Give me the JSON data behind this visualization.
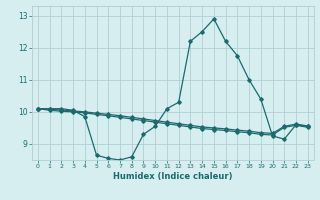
{
  "xlabel": "Humidex (Indice chaleur)",
  "bg_color": "#d6eef0",
  "grid_color": "#b0cfd4",
  "line_color": "#1a6b6e",
  "xlim": [
    -0.5,
    23.5
  ],
  "ylim": [
    8.5,
    13.3
  ],
  "yticks": [
    9,
    10,
    11,
    12,
    13
  ],
  "xticks": [
    0,
    1,
    2,
    3,
    4,
    5,
    6,
    7,
    8,
    9,
    10,
    11,
    12,
    13,
    14,
    15,
    16,
    17,
    18,
    19,
    20,
    21,
    22,
    23
  ],
  "series": [
    {
      "x": [
        0,
        1,
        2,
        3,
        4,
        5,
        6,
        7,
        8,
        9,
        10,
        11,
        12,
        13,
        14,
        15,
        16,
        17,
        18,
        19,
        20,
        21,
        22,
        23
      ],
      "y": [
        10.1,
        10.1,
        10.1,
        10.05,
        9.85,
        8.65,
        8.55,
        8.5,
        8.6,
        9.3,
        9.55,
        10.1,
        10.3,
        12.2,
        12.5,
        12.9,
        12.2,
        11.75,
        11.0,
        10.4,
        9.25,
        9.15,
        9.6,
        9.55
      ]
    },
    {
      "x": [
        0,
        1,
        2,
        3,
        4,
        5,
        6,
        7,
        8,
        9,
        10,
        11,
        12,
        13,
        14,
        15,
        16,
        17,
        18,
        19,
        20,
        21,
        22,
        23
      ],
      "y": [
        10.1,
        10.05,
        10.02,
        10.0,
        9.97,
        9.92,
        9.88,
        9.83,
        9.78,
        9.73,
        9.68,
        9.63,
        9.58,
        9.53,
        9.48,
        9.45,
        9.42,
        9.38,
        9.35,
        9.3,
        9.28,
        9.52,
        9.58,
        9.52
      ]
    },
    {
      "x": [
        0,
        1,
        2,
        3,
        4,
        5,
        6,
        7,
        8,
        9,
        10,
        11,
        12,
        13,
        14,
        15,
        16,
        17,
        18,
        19,
        20,
        21,
        22,
        23
      ],
      "y": [
        10.1,
        10.08,
        10.06,
        10.03,
        10.0,
        9.96,
        9.92,
        9.88,
        9.83,
        9.78,
        9.73,
        9.68,
        9.63,
        9.58,
        9.53,
        9.5,
        9.47,
        9.43,
        9.4,
        9.35,
        9.33,
        9.55,
        9.62,
        9.56
      ]
    }
  ]
}
